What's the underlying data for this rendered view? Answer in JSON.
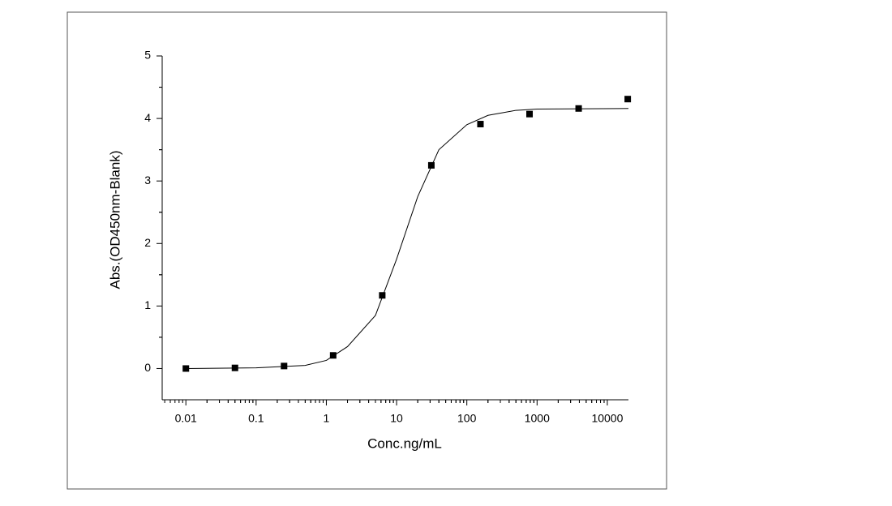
{
  "chart_data": {
    "type": "scatter",
    "x_label": "Conc.ng/mL",
    "y_label": "Abs.(OD450nm-Blank)",
    "xscale": "log",
    "xlim": [
      0.0046,
      20000
    ],
    "ylim": [
      -0.5,
      5
    ],
    "xticks": [
      0.01,
      0.1,
      1,
      10,
      100,
      1000,
      10000
    ],
    "yticks": [
      0,
      1,
      2,
      3,
      4,
      5
    ],
    "series": [
      {
        "color": "#000000",
        "marker": "square",
        "x": [
          0.01,
          0.05,
          0.25,
          1.25,
          6.25,
          31.25,
          156.25,
          781.25,
          3906.25,
          19531.25
        ],
        "values": [
          0,
          0.01,
          0.04,
          0.21,
          1.17,
          3.25,
          3.91,
          4.07,
          4.16,
          4.31
        ]
      },
      {
        "color": "#000000",
        "marker": "line",
        "x": [
          0.01,
          0.1,
          0.5,
          1,
          2,
          5,
          10,
          20,
          40,
          100,
          200,
          500,
          1000,
          20000
        ],
        "values": [
          0,
          0.01,
          0.05,
          0.13,
          0.35,
          0.85,
          1.75,
          2.75,
          3.5,
          3.9,
          4.05,
          4.13,
          4.15,
          4.16
        ]
      }
    ]
  }
}
